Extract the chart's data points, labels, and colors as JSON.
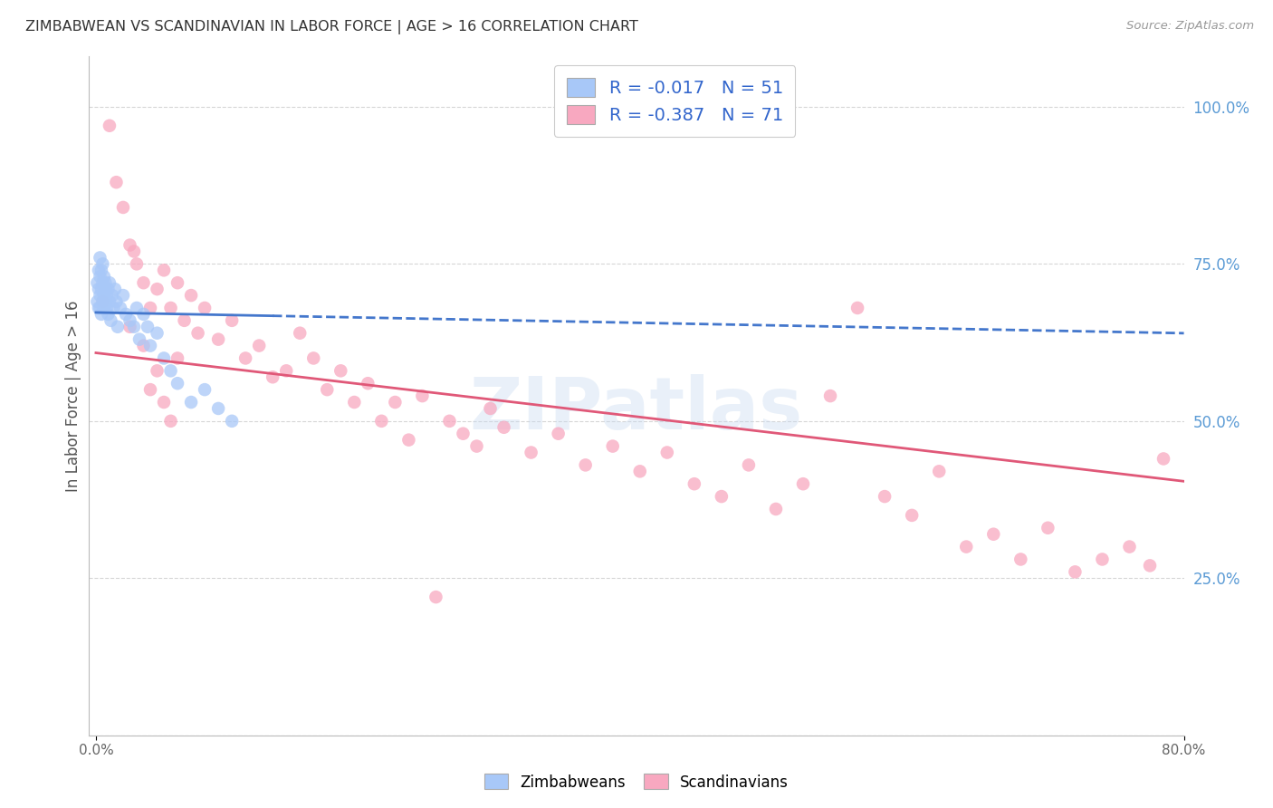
{
  "title": "ZIMBABWEAN VS SCANDINAVIAN IN LABOR FORCE | AGE > 16 CORRELATION CHART",
  "source": "Source: ZipAtlas.com",
  "ylabel": "In Labor Force | Age > 16",
  "ytick_positions": [
    0.0,
    0.25,
    0.5,
    0.75,
    1.0
  ],
  "ytick_labels": [
    "",
    "25.0%",
    "50.0%",
    "75.0%",
    "100.0%"
  ],
  "xlim": [
    -0.005,
    0.8
  ],
  "ylim": [
    0.0,
    1.08
  ],
  "background_color": "#ffffff",
  "grid_color": "#cccccc",
  "zimbabwean_color": "#a8c8f8",
  "scandinavian_color": "#f8a8c0",
  "zimbabwean_line_color": "#4477cc",
  "scandinavian_line_color": "#e05878",
  "zimbabwean_R": -0.017,
  "zimbabwean_N": 51,
  "scandinavian_R": -0.387,
  "scandinavian_N": 71,
  "legend_label_1": "Zimbabweans",
  "legend_label_2": "Scandinavians",
  "watermark": "ZIPatlas",
  "zimbabwean_x": [
    0.001,
    0.001,
    0.002,
    0.002,
    0.002,
    0.003,
    0.003,
    0.003,
    0.003,
    0.004,
    0.004,
    0.004,
    0.005,
    0.005,
    0.005,
    0.006,
    0.006,
    0.006,
    0.007,
    0.007,
    0.007,
    0.008,
    0.008,
    0.009,
    0.009,
    0.01,
    0.01,
    0.011,
    0.012,
    0.013,
    0.014,
    0.015,
    0.016,
    0.018,
    0.02,
    0.022,
    0.025,
    0.028,
    0.03,
    0.032,
    0.035,
    0.038,
    0.04,
    0.045,
    0.05,
    0.055,
    0.06,
    0.07,
    0.08,
    0.09,
    0.1
  ],
  "zimbabwean_y": [
    0.69,
    0.72,
    0.68,
    0.71,
    0.74,
    0.7,
    0.73,
    0.76,
    0.68,
    0.71,
    0.74,
    0.67,
    0.72,
    0.69,
    0.75,
    0.7,
    0.73,
    0.68,
    0.71,
    0.69,
    0.72,
    0.68,
    0.7,
    0.67,
    0.71,
    0.69,
    0.72,
    0.66,
    0.7,
    0.68,
    0.71,
    0.69,
    0.65,
    0.68,
    0.7,
    0.67,
    0.66,
    0.65,
    0.68,
    0.63,
    0.67,
    0.65,
    0.62,
    0.64,
    0.6,
    0.58,
    0.56,
    0.53,
    0.55,
    0.52,
    0.5
  ],
  "scandinavian_x": [
    0.005,
    0.01,
    0.015,
    0.02,
    0.025,
    0.028,
    0.03,
    0.035,
    0.04,
    0.045,
    0.05,
    0.055,
    0.06,
    0.065,
    0.07,
    0.075,
    0.08,
    0.09,
    0.1,
    0.11,
    0.12,
    0.13,
    0.14,
    0.15,
    0.16,
    0.17,
    0.18,
    0.19,
    0.2,
    0.21,
    0.22,
    0.23,
    0.24,
    0.25,
    0.26,
    0.27,
    0.28,
    0.29,
    0.3,
    0.32,
    0.34,
    0.36,
    0.38,
    0.4,
    0.42,
    0.44,
    0.46,
    0.48,
    0.5,
    0.52,
    0.54,
    0.56,
    0.58,
    0.6,
    0.62,
    0.64,
    0.66,
    0.68,
    0.7,
    0.72,
    0.74,
    0.76,
    0.775,
    0.785,
    0.06,
    0.025,
    0.035,
    0.04,
    0.045,
    0.05,
    0.055
  ],
  "scandinavian_y": [
    0.69,
    0.97,
    0.88,
    0.84,
    0.78,
    0.77,
    0.75,
    0.72,
    0.68,
    0.71,
    0.74,
    0.68,
    0.72,
    0.66,
    0.7,
    0.64,
    0.68,
    0.63,
    0.66,
    0.6,
    0.62,
    0.57,
    0.58,
    0.64,
    0.6,
    0.55,
    0.58,
    0.53,
    0.56,
    0.5,
    0.53,
    0.47,
    0.54,
    0.22,
    0.5,
    0.48,
    0.46,
    0.52,
    0.49,
    0.45,
    0.48,
    0.43,
    0.46,
    0.42,
    0.45,
    0.4,
    0.38,
    0.43,
    0.36,
    0.4,
    0.54,
    0.68,
    0.38,
    0.35,
    0.42,
    0.3,
    0.32,
    0.28,
    0.33,
    0.26,
    0.28,
    0.3,
    0.27,
    0.44,
    0.6,
    0.65,
    0.62,
    0.55,
    0.58,
    0.53,
    0.5
  ]
}
